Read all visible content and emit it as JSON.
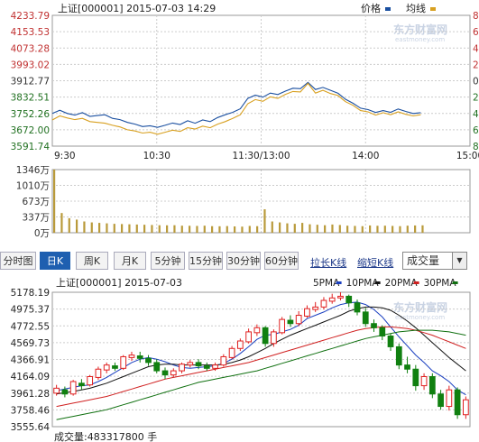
{
  "intraday": {
    "title": "上证[000001] 2015-07-03 14:29",
    "legend": [
      {
        "name": "价格",
        "color": "#1a4fa0"
      },
      {
        "name": "均线",
        "color": "#d8a020"
      }
    ],
    "watermark": "东方财富网",
    "watermark_url": "eastmoney.com",
    "y_ticks": [
      "4233.79",
      "4153.53",
      "4073.28",
      "3993.02",
      "3912.77",
      "3832.51",
      "3752.26",
      "3672.00",
      "3591.74"
    ],
    "y_right_ticks": [
      "8",
      "6",
      "4",
      "2",
      "0",
      "2",
      "4",
      "6",
      "8"
    ],
    "x_ticks": [
      "9:30",
      "10:30",
      "11:30/13:00",
      "14:00",
      "15:00"
    ],
    "vol_ticks": [
      "1346万",
      "1010万",
      "673万",
      "337万",
      "0万"
    ]
  },
  "toolbar": {
    "buttons": [
      "分时图",
      "日K",
      "周K",
      "月K",
      "5分钟",
      "15分钟",
      "30分钟",
      "60分钟"
    ],
    "active_index": 1,
    "links": [
      "拉长K线",
      "缩短K线"
    ],
    "select_value": "成交量"
  },
  "kline": {
    "title": "上证[000001] 2015-07-03",
    "ma_legend": [
      {
        "name": "5PMA",
        "color": "#1a3fc0"
      },
      {
        "name": "10PMA",
        "color": "#111111"
      },
      {
        "name": "20PMA",
        "color": "#d02020"
      },
      {
        "name": "30PMA",
        "color": "#107010"
      }
    ],
    "watermark": "东方财富网",
    "watermark_url": "eastmoney.com",
    "y_ticks": [
      "5178.19",
      "4975.37",
      "4772.55",
      "4569.73",
      "4366.91",
      "4164.09",
      "3961.28",
      "3758.46",
      "3555.64"
    ],
    "volume_text": "成交量:483317800 手"
  },
  "chart_data": [
    {
      "type": "line",
      "title": "上证[000001] 2015-07-03 14:29",
      "x_labels": [
        "9:30",
        "10:30",
        "11:30/13:00",
        "14:00",
        "15:00"
      ],
      "ylim": [
        3591.74,
        4233.79
      ],
      "series": [
        {
          "name": "价格",
          "values": [
            3752,
            3768,
            3752,
            3744,
            3756,
            3738,
            3742,
            3746,
            3728,
            3722,
            3708,
            3700,
            3688,
            3692,
            3684,
            3694,
            3705,
            3698,
            3716,
            3704,
            3720,
            3712,
            3732,
            3746,
            3758,
            3775,
            3826,
            3842,
            3832,
            3852,
            3845,
            3862,
            3876,
            3874,
            3905,
            3870,
            3880,
            3866,
            3851,
            3822,
            3802,
            3778,
            3771,
            3757,
            3766,
            3758,
            3774,
            3762,
            3752,
            3756
          ]
        },
        {
          "name": "均线",
          "values": [
            3720,
            3740,
            3730,
            3722,
            3728,
            3712,
            3708,
            3704,
            3694,
            3686,
            3672,
            3666,
            3656,
            3660,
            3650,
            3660,
            3670,
            3664,
            3682,
            3676,
            3690,
            3682,
            3700,
            3712,
            3728,
            3746,
            3800,
            3820,
            3812,
            3834,
            3826,
            3846,
            3860,
            3858,
            3900,
            3852,
            3866,
            3850,
            3840,
            3810,
            3792,
            3766,
            3760,
            3744,
            3756,
            3746,
            3760,
            3748,
            3740,
            3746
          ]
        }
      ],
      "volume": {
        "ylim": [
          0,
          1346
        ],
        "unit": "万",
        "values": [
          1346,
          420,
          310,
          280,
          240,
          220,
          210,
          200,
          190,
          185,
          180,
          175,
          170,
          165,
          160,
          158,
          160,
          150,
          148,
          145,
          150,
          140,
          138,
          142,
          135,
          130,
          145,
          140,
          500,
          240,
          220,
          200,
          190,
          210,
          180,
          170,
          160,
          175,
          165,
          150,
          145,
          140,
          155,
          148,
          150,
          145,
          140,
          150,
          155,
          158
        ]
      }
    },
    {
      "type": "candlestick",
      "title": "上证[000001] 2015-07-03",
      "ylim": [
        3555.64,
        5178.19
      ],
      "candles": [
        [
          3960,
          4020,
          4060,
          3930
        ],
        [
          4000,
          3950,
          4040,
          3910
        ],
        [
          3950,
          4100,
          4120,
          3930
        ],
        [
          4080,
          4050,
          4130,
          4000
        ],
        [
          4060,
          4160,
          4180,
          4040
        ],
        [
          4150,
          4250,
          4280,
          4120
        ],
        [
          4240,
          4300,
          4330,
          4200
        ],
        [
          4290,
          4260,
          4330,
          4230
        ],
        [
          4260,
          4400,
          4420,
          4240
        ],
        [
          4390,
          4420,
          4460,
          4350
        ],
        [
          4410,
          4380,
          4460,
          4330
        ],
        [
          4380,
          4330,
          4420,
          4290
        ],
        [
          4330,
          4230,
          4370,
          4200
        ],
        [
          4230,
          4180,
          4270,
          4130
        ],
        [
          4180,
          4230,
          4260,
          4150
        ],
        [
          4230,
          4310,
          4330,
          4200
        ],
        [
          4300,
          4330,
          4360,
          4270
        ],
        [
          4330,
          4290,
          4370,
          4250
        ],
        [
          4290,
          4260,
          4330,
          4230
        ],
        [
          4260,
          4300,
          4330,
          4230
        ],
        [
          4300,
          4400,
          4430,
          4280
        ],
        [
          4390,
          4500,
          4530,
          4370
        ],
        [
          4500,
          4590,
          4620,
          4470
        ],
        [
          4580,
          4700,
          4740,
          4560
        ],
        [
          4690,
          4750,
          4790,
          4650
        ],
        [
          4750,
          4560,
          4770,
          4520
        ],
        [
          4560,
          4700,
          4730,
          4520
        ],
        [
          4690,
          4850,
          4880,
          4670
        ],
        [
          4840,
          4800,
          4900,
          4760
        ],
        [
          4800,
          4900,
          4950,
          4770
        ],
        [
          4890,
          4980,
          5020,
          4870
        ],
        [
          4970,
          5000,
          5060,
          4940
        ],
        [
          5000,
          5080,
          5120,
          4970
        ],
        [
          5070,
          5110,
          5160,
          5040
        ],
        [
          5110,
          5130,
          5178,
          5080
        ],
        [
          5130,
          5050,
          5150,
          5000
        ],
        [
          5050,
          4940,
          5090,
          4900
        ],
        [
          4940,
          4800,
          4990,
          4760
        ],
        [
          4800,
          4750,
          4850,
          4700
        ],
        [
          4750,
          4650,
          4780,
          4600
        ],
        [
          4650,
          4520,
          4680,
          4470
        ],
        [
          4520,
          4300,
          4560,
          4250
        ],
        [
          4300,
          4250,
          4400,
          4200
        ],
        [
          4250,
          4050,
          4300,
          3990
        ],
        [
          4050,
          4160,
          4200,
          4000
        ],
        [
          4160,
          3950,
          4200,
          3900
        ],
        [
          3950,
          3800,
          4000,
          3760
        ],
        [
          3800,
          4000,
          4050,
          3750
        ],
        [
          4000,
          3700,
          4030,
          3650
        ],
        [
          3700,
          3880,
          3920,
          3650
        ]
      ],
      "ma": {
        "5PMA": [
          3990,
          4010,
          4030,
          4050,
          4060,
          4100,
          4150,
          4210,
          4270,
          4330,
          4370,
          4390,
          4370,
          4340,
          4300,
          4270,
          4260,
          4270,
          4280,
          4290,
          4320,
          4370,
          4440,
          4520,
          4610,
          4660,
          4670,
          4700,
          4730,
          4780,
          4860,
          4900,
          4940,
          4990,
          5030,
          5050,
          5060,
          5030,
          4970,
          4880,
          4760,
          4640,
          4530,
          4420,
          4330,
          4230,
          4170,
          4100,
          4000,
          3940
        ],
        "10PMA": [
          3950,
          3965,
          3980,
          4000,
          4020,
          4050,
          4080,
          4120,
          4160,
          4200,
          4240,
          4280,
          4300,
          4310,
          4310,
          4300,
          4300,
          4300,
          4300,
          4300,
          4310,
          4330,
          4360,
          4400,
          4450,
          4500,
          4560,
          4610,
          4660,
          4700,
          4740,
          4780,
          4820,
          4860,
          4900,
          4950,
          4980,
          5000,
          5000,
          4990,
          4960,
          4900,
          4830,
          4750,
          4660,
          4570,
          4480,
          4390,
          4310,
          4230
        ],
        "20PMA": [
          3800,
          3820,
          3840,
          3860,
          3880,
          3900,
          3920,
          3950,
          3980,
          4010,
          4040,
          4070,
          4100,
          4130,
          4150,
          4170,
          4190,
          4210,
          4230,
          4250,
          4270,
          4290,
          4310,
          4330,
          4360,
          4390,
          4420,
          4450,
          4480,
          4510,
          4540,
          4570,
          4600,
          4630,
          4660,
          4690,
          4720,
          4740,
          4750,
          4760,
          4760,
          4750,
          4740,
          4720,
          4690,
          4660,
          4620,
          4580,
          4540,
          4500
        ],
        "30PMA": [
          3640,
          3660,
          3680,
          3700,
          3720,
          3740,
          3760,
          3790,
          3820,
          3850,
          3880,
          3910,
          3940,
          3970,
          4000,
          4030,
          4060,
          4090,
          4110,
          4130,
          4150,
          4170,
          4190,
          4210,
          4230,
          4260,
          4290,
          4320,
          4350,
          4380,
          4410,
          4440,
          4470,
          4500,
          4530,
          4560,
          4590,
          4620,
          4640,
          4660,
          4680,
          4700,
          4710,
          4720,
          4720,
          4720,
          4710,
          4700,
          4680,
          4660
        ]
      }
    }
  ]
}
